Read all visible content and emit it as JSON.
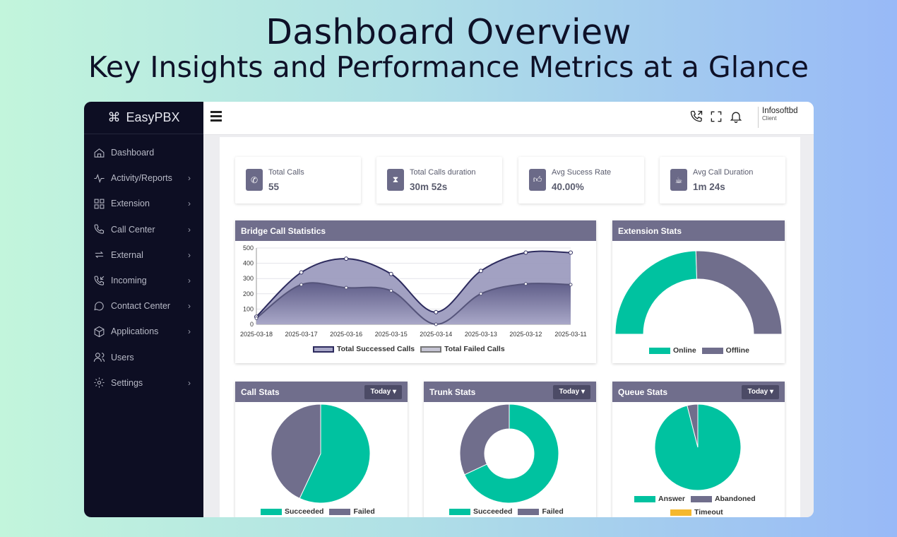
{
  "hero": {
    "title": "Dashboard Overview",
    "subtitle": "Key Insights and Performance Metrics at a Glance"
  },
  "app": {
    "brand": "EasyPBX",
    "user": {
      "name": "Infosoftbd",
      "role": "Client"
    }
  },
  "sidebar": {
    "items": [
      {
        "label": "Dashboard",
        "icon": "home-icon",
        "has_submenu": false
      },
      {
        "label": "Activity/Reports",
        "icon": "activity-icon",
        "has_submenu": true
      },
      {
        "label": "Extension",
        "icon": "grid-icon",
        "has_submenu": true
      },
      {
        "label": "Call Center",
        "icon": "phone-icon",
        "has_submenu": true
      },
      {
        "label": "External",
        "icon": "repeat-icon",
        "has_submenu": true
      },
      {
        "label": "Incoming",
        "icon": "phone-incoming-icon",
        "has_submenu": true
      },
      {
        "label": "Contact Center",
        "icon": "chat-icon",
        "has_submenu": true
      },
      {
        "label": "Applications",
        "icon": "box-icon",
        "has_submenu": true
      },
      {
        "label": "Users",
        "icon": "users-icon",
        "has_submenu": false
      },
      {
        "label": "Settings",
        "icon": "gear-icon",
        "has_submenu": true
      }
    ]
  },
  "kpis": [
    {
      "label": "Total Calls",
      "value": "55",
      "icon": "phone-icon"
    },
    {
      "label": "Total Calls duration",
      "value": "30m 52s",
      "icon": "hourglass-icon"
    },
    {
      "label": "Avg Sucess Rate",
      "value": "40.00%",
      "icon": "thumbs-up-icon"
    },
    {
      "label": "Avg Call Duration",
      "value": "1m 24s",
      "icon": "cup-icon"
    }
  ],
  "colors": {
    "accent": "#706e8c",
    "success": "#00c2a0",
    "failed": "#706e8c",
    "timeout": "#f5b82e",
    "sidebar": "#0d0e23"
  },
  "cards": {
    "bridge": {
      "title": "Bridge Call Statistics"
    },
    "extension": {
      "title": "Extension Stats"
    },
    "call_stats": {
      "title": "Call Stats",
      "filter": "Today"
    },
    "trunk_stats": {
      "title": "Trunk Stats",
      "filter": "Today"
    },
    "queue_stats": {
      "title": "Queue Stats",
      "filter": "Today"
    }
  },
  "chart_data": [
    {
      "type": "area",
      "title": "Bridge Call Statistics",
      "x": [
        "2025-03-18",
        "2025-03-17",
        "2025-03-16",
        "2025-03-15",
        "2025-03-14",
        "2025-03-13",
        "2025-03-12",
        "2025-03-11"
      ],
      "ylim": [
        0,
        500
      ],
      "yticks": [
        0,
        100,
        200,
        300,
        400,
        500
      ],
      "series": [
        {
          "name": "Total Successed Calls",
          "values": [
            50,
            340,
            430,
            330,
            80,
            350,
            470,
            470
          ]
        },
        {
          "name": "Total Failed Calls",
          "values": [
            40,
            260,
            240,
            220,
            0,
            200,
            265,
            260
          ]
        }
      ]
    },
    {
      "type": "pie",
      "title": "Extension Stats",
      "style": "half-donut",
      "labels": [
        "Online",
        "Offline"
      ],
      "values": [
        49,
        51
      ]
    },
    {
      "type": "pie",
      "title": "Call Stats",
      "labels": [
        "Succeeded",
        "Failed"
      ],
      "values": [
        57,
        43
      ]
    },
    {
      "type": "pie",
      "title": "Trunk Stats",
      "style": "donut",
      "labels": [
        "Succeeded",
        "Failed"
      ],
      "values": [
        68,
        32
      ]
    },
    {
      "type": "pie",
      "title": "Queue Stats",
      "labels": [
        "Answer",
        "Abandoned",
        "Timeout"
      ],
      "values": [
        96,
        4,
        0
      ]
    }
  ]
}
